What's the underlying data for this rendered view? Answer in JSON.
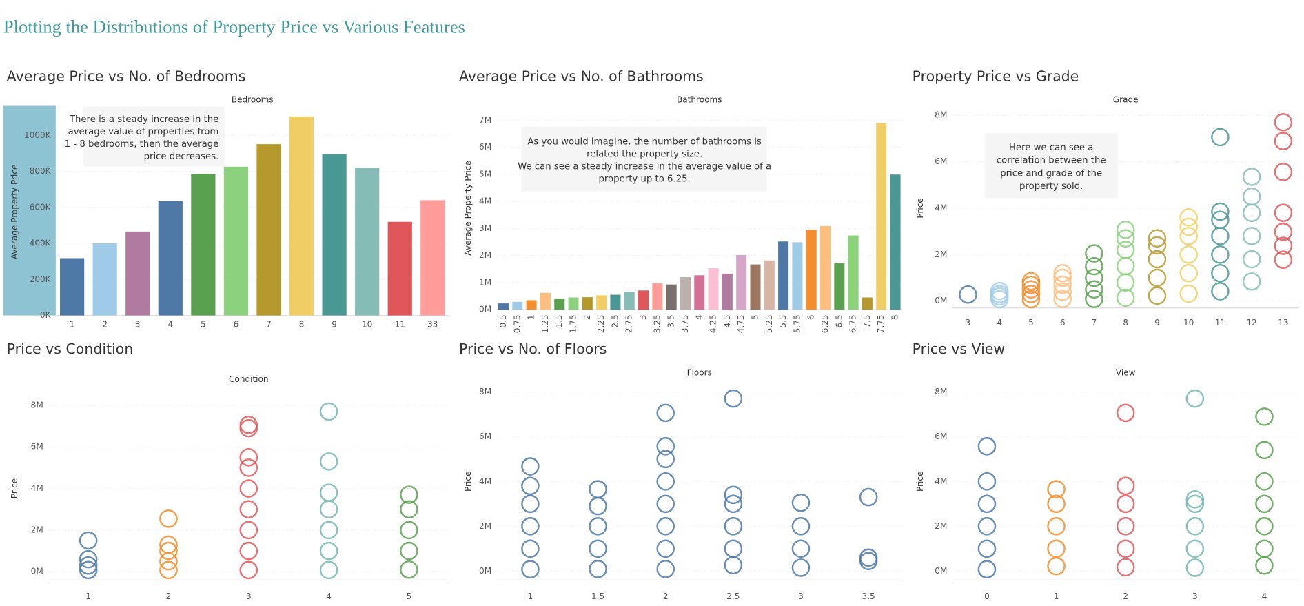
{
  "title": "Plotting the Distributions of Property Price vs Various Features",
  "chart_data": [
    {
      "type": "bar",
      "title": "Average Price vs No. of Bedrooms",
      "x_label": "Bedrooms",
      "y_label": "Average Property Price",
      "annotation": [
        "There is a steady increase in the",
        "average value of properties from",
        "1 - 8 bedrooms, then the average",
        "price decreases."
      ],
      "categories": [
        "1",
        "2",
        "3",
        "4",
        "5",
        "6",
        "7",
        "8",
        "9",
        "10",
        "11",
        "33"
      ],
      "values": [
        318000,
        401000,
        466000,
        635000,
        786000,
        826000,
        951000,
        1105000,
        894000,
        820000,
        520000,
        640000
      ],
      "colors": [
        "#4e79a7",
        "#a0cbe8",
        "#b07aa1",
        "#4e79a7",
        "#59a14f",
        "#8cd17d",
        "#b6992d",
        "#f1ce63",
        "#499894",
        "#86bcb6",
        "#e15759",
        "#ff9d9a"
      ],
      "ylim": [
        0,
        1150000
      ],
      "yticks": [
        {
          "value": 0,
          "label": "0K"
        },
        {
          "value": 200000,
          "label": "200K"
        },
        {
          "value": 400000,
          "label": "400K"
        },
        {
          "value": 600000,
          "label": "600K"
        },
        {
          "value": 800000,
          "label": "800K"
        },
        {
          "value": 1000000,
          "label": "1000K"
        }
      ],
      "grid": true
    },
    {
      "type": "bar",
      "title": "Average Price vs No. of Bathrooms",
      "x_label": "Bathrooms",
      "y_label": "Average Property Price",
      "annotation": [
        "As you would imagine, the number of bathrooms is",
        "related the property size.",
        "We can see a steady increase in the average value of a",
        "property up to 6.25."
      ],
      "categories": [
        "0.5",
        "0.75",
        "1",
        "1.25",
        "1.5",
        "1.75",
        "2",
        "2.25",
        "2.5",
        "2.75",
        "3",
        "3.25",
        "3.5",
        "3.75",
        "4",
        "4.25",
        "4.5",
        "4.75",
        "5",
        "5.25",
        "5.5",
        "5.75",
        "6",
        "6.25",
        "6.5",
        "6.75",
        "7.5",
        "7.75",
        "8"
      ],
      "values": [
        230000,
        290000,
        350000,
        620000,
        410000,
        450000,
        460000,
        530000,
        550000,
        660000,
        710000,
        970000,
        930000,
        1200000,
        1270000,
        1530000,
        1330000,
        2020000,
        1670000,
        1820000,
        2520000,
        2490000,
        2950000,
        3090000,
        1710000,
        2740000,
        450000,
        6890000,
        4990000
      ],
      "colors": [
        "#4e79a7",
        "#a0cbe8",
        "#f28e2b",
        "#ffbe7d",
        "#59a14f",
        "#8cd17d",
        "#b6992d",
        "#f1ce63",
        "#499894",
        "#86bcb6",
        "#e15759",
        "#ff9d9a",
        "#79706e",
        "#bab0ac",
        "#d37295",
        "#fabfd2",
        "#b07aa1",
        "#d4a6c8",
        "#9d7660",
        "#d7b5a6",
        "#4e79a7",
        "#a0cbe8",
        "#f28e2b",
        "#ffbe7d",
        "#59a14f",
        "#8cd17d",
        "#b6992d",
        "#f1ce63",
        "#499894"
      ],
      "ylim": [
        0,
        7500000
      ],
      "yticks": [
        {
          "value": 0,
          "label": "0M"
        },
        {
          "value": 1000000,
          "label": "1M"
        },
        {
          "value": 2000000,
          "label": "2M"
        },
        {
          "value": 3000000,
          "label": "3M"
        },
        {
          "value": 4000000,
          "label": "4M"
        },
        {
          "value": 5000000,
          "label": "5M"
        },
        {
          "value": 6000000,
          "label": "6M"
        },
        {
          "value": 7000000,
          "label": "7M"
        }
      ],
      "grid": true
    },
    {
      "type": "scatter",
      "title": "Property Price vs Grade",
      "x_label": "Grade",
      "y_label": "Price",
      "annotation": [
        "Here we can see a",
        "correlation between the",
        "price and grade of the",
        "property sold."
      ],
      "categories": [
        "3",
        "4",
        "5",
        "6",
        "7",
        "8",
        "9",
        "10",
        "11",
        "12",
        "13"
      ],
      "values": [
        [
          280000
        ],
        [
          80000,
          200000,
          300000,
          430000
        ],
        [
          80000,
          300000,
          500000,
          700000,
          850000
        ],
        [
          90000,
          400000,
          700000,
          1000000,
          1200000
        ],
        [
          90000,
          500000,
          1000000,
          1500000,
          2050000
        ],
        [
          140000,
          800000,
          1500000,
          2200000,
          2700000,
          3070000
        ],
        [
          230000,
          1000000,
          1800000,
          2400000,
          2700000
        ],
        [
          320000,
          1200000,
          2000000,
          2800000,
          3200000,
          3600000
        ],
        [
          420000,
          1200000,
          2000000,
          2800000,
          3500000,
          3850000,
          7060000
        ],
        [
          840000,
          1800000,
          2800000,
          3800000,
          4500000,
          5350000
        ],
        [
          1780000,
          2380000,
          2980000,
          3800000,
          5560000,
          6890000,
          7700000
        ]
      ],
      "colors": [
        "#4e79a7",
        "#a0cbe8",
        "#f28e2b",
        "#ffbe7d",
        "#59a14f",
        "#8cd17d",
        "#b6992d",
        "#f1ce63",
        "#499894",
        "#86bcb6",
        "#e15759"
      ],
      "ylim": [
        -300000,
        8300000
      ],
      "yticks": [
        {
          "value": 0,
          "label": "0M"
        },
        {
          "value": 2000000,
          "label": "2M"
        },
        {
          "value": 4000000,
          "label": "4M"
        },
        {
          "value": 6000000,
          "label": "6M"
        },
        {
          "value": 8000000,
          "label": "8M"
        }
      ],
      "grid": true
    },
    {
      "type": "scatter",
      "title": "Price vs Condition",
      "x_label": "Condition",
      "y_label": "Price",
      "categories": [
        "1",
        "2",
        "3",
        "4",
        "5"
      ],
      "values": [
        [
          80000,
          300000,
          600000,
          1500000
        ],
        [
          80000,
          500000,
          1000000,
          1300000,
          2550000
        ],
        [
          80000,
          1000000,
          2000000,
          3000000,
          4000000,
          5000000,
          5500000,
          6900000,
          7060000
        ],
        [
          80000,
          1000000,
          2000000,
          3000000,
          3800000,
          5300000,
          7700000
        ],
        [
          100000,
          1000000,
          2000000,
          3000000,
          3700000
        ]
      ],
      "colors": [
        "#4e79a7",
        "#f28e2b",
        "#e15759",
        "#76b7b2",
        "#59a14f"
      ],
      "ylim": [
        -400000,
        8400000
      ],
      "yticks": [
        {
          "value": 0,
          "label": "0M"
        },
        {
          "value": 2000000,
          "label": "2M"
        },
        {
          "value": 4000000,
          "label": "4M"
        },
        {
          "value": 6000000,
          "label": "6M"
        },
        {
          "value": 8000000,
          "label": "8M"
        }
      ],
      "grid": true
    },
    {
      "type": "scatter",
      "title": "Price vs No. of Floors",
      "x_label": "Floors",
      "y_label": "Price",
      "categories": [
        "1",
        "1.5",
        "2",
        "2.5",
        "3",
        "3.5"
      ],
      "values": [
        [
          80000,
          1000000,
          2000000,
          3000000,
          3800000,
          4670000
        ],
        [
          90000,
          1000000,
          2000000,
          2900000,
          3650000
        ],
        [
          90000,
          1000000,
          2000000,
          3000000,
          4000000,
          5000000,
          5570000,
          7060000
        ],
        [
          260000,
          1000000,
          2000000,
          3000000,
          3400000,
          7700000
        ],
        [
          150000,
          1000000,
          2000000,
          3050000
        ],
        [
          450000,
          600000,
          3300000
        ]
      ],
      "colors": [
        "#4e79a7",
        "#4e79a7",
        "#4e79a7",
        "#4e79a7",
        "#4e79a7",
        "#4e79a7"
      ],
      "ylim": [
        -400000,
        8400000
      ],
      "yticks": [
        {
          "value": 0,
          "label": "0M"
        },
        {
          "value": 2000000,
          "label": "2M"
        },
        {
          "value": 4000000,
          "label": "4M"
        },
        {
          "value": 6000000,
          "label": "6M"
        },
        {
          "value": 8000000,
          "label": "8M"
        }
      ],
      "grid": true
    },
    {
      "type": "scatter",
      "title": "Price vs View",
      "x_label": "View",
      "y_label": "Price",
      "categories": [
        "0",
        "1",
        "2",
        "3",
        "4"
      ],
      "values": [
        [
          80000,
          1000000,
          2000000,
          3000000,
          4000000,
          5570000
        ],
        [
          220000,
          1000000,
          2000000,
          3000000,
          3650000
        ],
        [
          170000,
          1000000,
          2000000,
          3000000,
          3800000,
          7060000
        ],
        [
          150000,
          1000000,
          2000000,
          3000000,
          3200000,
          7700000
        ],
        [
          250000,
          1000000,
          2000000,
          3000000,
          4000000,
          5400000,
          6890000
        ]
      ],
      "colors": [
        "#4e79a7",
        "#f28e2b",
        "#e15759",
        "#76b7b2",
        "#59a14f"
      ],
      "ylim": [
        -400000,
        8400000
      ],
      "yticks": [
        {
          "value": 0,
          "label": "0M"
        },
        {
          "value": 2000000,
          "label": "2M"
        },
        {
          "value": 4000000,
          "label": "4M"
        },
        {
          "value": 6000000,
          "label": "6M"
        },
        {
          "value": 8000000,
          "label": "8M"
        }
      ],
      "grid": true
    }
  ]
}
